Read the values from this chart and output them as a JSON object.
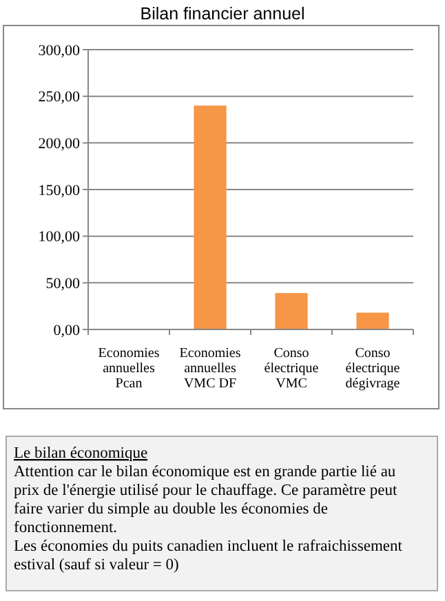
{
  "chart_data": {
    "type": "bar",
    "title": "Bilan financier annuel",
    "categories": [
      "Economies annuelles Pcan",
      "Economies annuelles VMC DF",
      "Conso électrique VMC",
      "Conso électrique dégivrage"
    ],
    "values": [
      0,
      240,
      39,
      18
    ],
    "color": "#f79646",
    "ylim": [
      0,
      300
    ],
    "yticks": [
      {
        "value": 0,
        "label": "0,00"
      },
      {
        "value": 50,
        "label": "50,00"
      },
      {
        "value": 100,
        "label": "100,00"
      },
      {
        "value": 150,
        "label": "150,00"
      },
      {
        "value": 200,
        "label": "200,00"
      },
      {
        "value": 250,
        "label": "250,00"
      },
      {
        "value": 300,
        "label": "300,00"
      }
    ],
    "grid": "y",
    "annotations": [
      "Le bilan économique",
      "Attention car le bilan économique est en grande partie lié au prix de l'énergie  utilisé pour le chauffage. Ce paramètre peut faire varier du simple au double les économies de fonctionnement.",
      "Les économies du puits canadien incluent le rafraichissement estival (sauf si valeur = 0)"
    ]
  }
}
